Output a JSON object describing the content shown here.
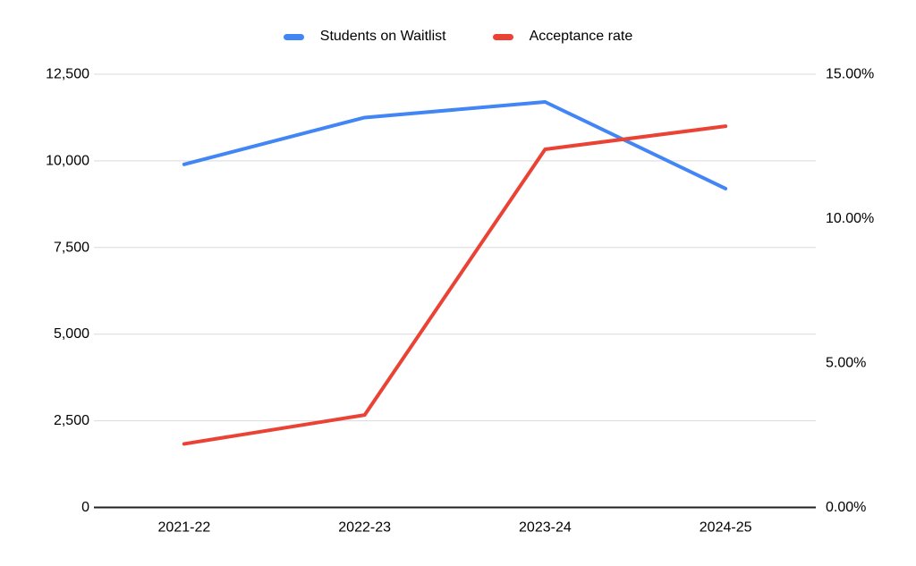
{
  "chart_data": {
    "type": "line",
    "title": "",
    "categories": [
      "2021-22",
      "2022-23",
      "2023-24",
      "2024-25"
    ],
    "series": [
      {
        "name": "Students on Waitlist",
        "axis": "left",
        "color": "#4285F4",
        "values": [
          9900,
          11250,
          11700,
          9200
        ]
      },
      {
        "name": "Acceptance rate",
        "axis": "right",
        "color": "#EA4335",
        "values": [
          2.2,
          3.2,
          12.4,
          13.2
        ],
        "value_format": "percent"
      }
    ],
    "left_axis": {
      "min": 0,
      "max": 12500,
      "ticks": [
        {
          "value": 0,
          "label": "0"
        },
        {
          "value": 2500,
          "label": "2,500"
        },
        {
          "value": 5000,
          "label": "5,000"
        },
        {
          "value": 7500,
          "label": "7,500"
        },
        {
          "value": 10000,
          "label": "10,000"
        },
        {
          "value": 12500,
          "label": "12,500"
        }
      ]
    },
    "right_axis": {
      "min": 0,
      "max": 15,
      "ticks": [
        {
          "value": 0,
          "label": "0.00%"
        },
        {
          "value": 5,
          "label": "5.00%"
        },
        {
          "value": 10,
          "label": "10.00%"
        },
        {
          "value": 15,
          "label": "15.00%"
        }
      ]
    },
    "legend_position": "top",
    "grid": true,
    "colors": {
      "gridline": "#d9d9d9",
      "axis_line": "#212121",
      "text": "#000000",
      "background": "#ffffff"
    }
  }
}
